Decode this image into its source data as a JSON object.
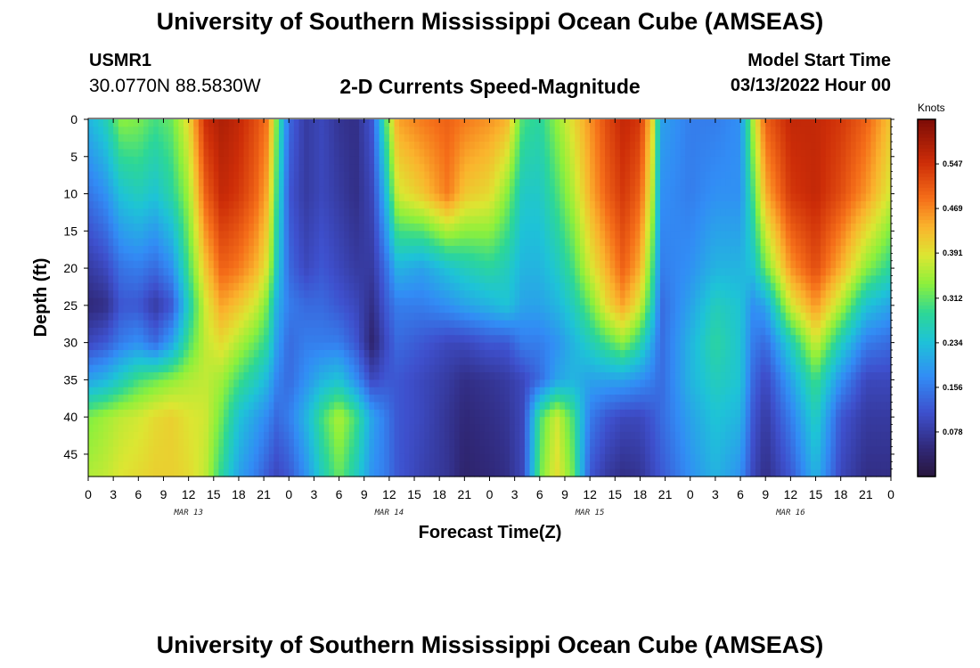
{
  "header": {
    "title": "University of Southern Mississippi Ocean Cube (AMSEAS)",
    "station_id": "USMR1",
    "station_coords": "30.0770N  88.5830W",
    "plot_title": "2-D Currents Speed-Magnitude",
    "start_label": "Model Start Time",
    "start_value": "03/13/2022 Hour 00"
  },
  "footer": {
    "title": "University of Southern Mississippi Ocean Cube (AMSEAS)"
  },
  "chart_data": {
    "type": "heatmap",
    "title": "2-D Currents Speed-Magnitude",
    "xlabel": "Forecast Time(Z)",
    "ylabel": "Depth (ft)",
    "x_hours": [
      0,
      96
    ],
    "xticks": [
      {
        "h": 0,
        "label": "0"
      },
      {
        "h": 3,
        "label": "3"
      },
      {
        "h": 6,
        "label": "6"
      },
      {
        "h": 9,
        "label": "9"
      },
      {
        "h": 12,
        "label": "12"
      },
      {
        "h": 15,
        "label": "15"
      },
      {
        "h": 18,
        "label": "18"
      },
      {
        "h": 21,
        "label": "21"
      },
      {
        "h": 24,
        "label": "0"
      },
      {
        "h": 27,
        "label": "3"
      },
      {
        "h": 30,
        "label": "6"
      },
      {
        "h": 33,
        "label": "9"
      },
      {
        "h": 36,
        "label": "12"
      },
      {
        "h": 39,
        "label": "15"
      },
      {
        "h": 42,
        "label": "18"
      },
      {
        "h": 45,
        "label": "21"
      },
      {
        "h": 48,
        "label": "0"
      },
      {
        "h": 51,
        "label": "3"
      },
      {
        "h": 54,
        "label": "6"
      },
      {
        "h": 57,
        "label": "9"
      },
      {
        "h": 60,
        "label": "12"
      },
      {
        "h": 63,
        "label": "15"
      },
      {
        "h": 66,
        "label": "18"
      },
      {
        "h": 69,
        "label": "21"
      },
      {
        "h": 72,
        "label": "0"
      },
      {
        "h": 75,
        "label": "3"
      },
      {
        "h": 78,
        "label": "6"
      },
      {
        "h": 81,
        "label": "9"
      },
      {
        "h": 84,
        "label": "12"
      },
      {
        "h": 87,
        "label": "15"
      },
      {
        "h": 90,
        "label": "18"
      },
      {
        "h": 93,
        "label": "21"
      },
      {
        "h": 96,
        "label": "0"
      }
    ],
    "date_labels": [
      {
        "h": 12,
        "label": "MAR 13"
      },
      {
        "h": 36,
        "label": "MAR 14"
      },
      {
        "h": 60,
        "label": "MAR 15"
      },
      {
        "h": 84,
        "label": "MAR 16"
      }
    ],
    "ylim": [
      0,
      48
    ],
    "yticks": [
      0,
      5,
      10,
      15,
      20,
      25,
      30,
      35,
      40,
      45
    ],
    "colorbar": {
      "unit_label": "Knots",
      "range": [
        0.0,
        0.625
      ],
      "ticks": [
        0.078,
        0.156,
        0.234,
        0.312,
        0.391,
        0.469,
        0.547
      ],
      "tick_labels": [
        "0.078",
        "0.156",
        "0.234",
        "0.312",
        "0.391",
        "0.469",
        "0.547"
      ]
    },
    "depth_levels_ft": [
      0,
      10,
      20,
      25,
      30,
      35,
      40,
      48
    ],
    "speed_columns": [
      {
        "h": 0,
        "values": [
          0.22,
          0.15,
          0.08,
          0.05,
          0.1,
          0.2,
          0.33,
          0.36
        ]
      },
      {
        "h": 2,
        "values": [
          0.26,
          0.18,
          0.1,
          0.06,
          0.12,
          0.22,
          0.35,
          0.37
        ]
      },
      {
        "h": 4,
        "values": [
          0.34,
          0.24,
          0.15,
          0.12,
          0.16,
          0.26,
          0.37,
          0.39
        ]
      },
      {
        "h": 6,
        "values": [
          0.33,
          0.26,
          0.16,
          0.12,
          0.18,
          0.3,
          0.38,
          0.4
        ]
      },
      {
        "h": 8,
        "values": [
          0.3,
          0.24,
          0.14,
          0.08,
          0.14,
          0.32,
          0.4,
          0.41
        ]
      },
      {
        "h": 10,
        "values": [
          0.32,
          0.28,
          0.18,
          0.12,
          0.2,
          0.34,
          0.41,
          0.41
        ]
      },
      {
        "h": 12,
        "values": [
          0.4,
          0.35,
          0.3,
          0.26,
          0.3,
          0.36,
          0.39,
          0.4
        ]
      },
      {
        "h": 14,
        "values": [
          0.55,
          0.5,
          0.42,
          0.38,
          0.37,
          0.37,
          0.38,
          0.37
        ]
      },
      {
        "h": 16,
        "values": [
          0.58,
          0.56,
          0.5,
          0.45,
          0.4,
          0.35,
          0.32,
          0.28
        ]
      },
      {
        "h": 18,
        "values": [
          0.56,
          0.54,
          0.48,
          0.42,
          0.36,
          0.3,
          0.24,
          0.2
        ]
      },
      {
        "h": 20,
        "values": [
          0.52,
          0.5,
          0.44,
          0.38,
          0.32,
          0.26,
          0.2,
          0.16
        ]
      },
      {
        "h": 21.5,
        "values": [
          0.48,
          0.44,
          0.38,
          0.32,
          0.28,
          0.22,
          0.17,
          0.12
        ]
      },
      {
        "h": 22.5,
        "values": [
          0.33,
          0.3,
          0.26,
          0.22,
          0.2,
          0.17,
          0.14,
          0.1
        ]
      },
      {
        "h": 24,
        "values": [
          0.14,
          0.12,
          0.14,
          0.16,
          0.14,
          0.14,
          0.16,
          0.12
        ]
      },
      {
        "h": 26,
        "values": [
          0.08,
          0.08,
          0.1,
          0.14,
          0.16,
          0.18,
          0.22,
          0.18
        ]
      },
      {
        "h": 28,
        "values": [
          0.1,
          0.1,
          0.12,
          0.14,
          0.16,
          0.22,
          0.3,
          0.26
        ]
      },
      {
        "h": 30,
        "values": [
          0.07,
          0.08,
          0.1,
          0.12,
          0.16,
          0.24,
          0.36,
          0.32
        ]
      },
      {
        "h": 32,
        "values": [
          0.06,
          0.06,
          0.08,
          0.1,
          0.12,
          0.18,
          0.3,
          0.26
        ]
      },
      {
        "h": 34,
        "values": [
          0.12,
          0.1,
          0.08,
          0.06,
          0.04,
          0.1,
          0.2,
          0.18
        ]
      },
      {
        "h": 35.5,
        "values": [
          0.3,
          0.22,
          0.14,
          0.12,
          0.1,
          0.12,
          0.16,
          0.16
        ]
      },
      {
        "h": 37,
        "values": [
          0.45,
          0.38,
          0.22,
          0.16,
          0.14,
          0.12,
          0.12,
          0.12
        ]
      },
      {
        "h": 40,
        "values": [
          0.48,
          0.42,
          0.2,
          0.16,
          0.12,
          0.1,
          0.1,
          0.09
        ]
      },
      {
        "h": 43,
        "values": [
          0.5,
          0.48,
          0.24,
          0.18,
          0.1,
          0.08,
          0.07,
          0.07
        ]
      },
      {
        "h": 45,
        "values": [
          0.48,
          0.42,
          0.26,
          0.2,
          0.1,
          0.06,
          0.05,
          0.04
        ]
      },
      {
        "h": 48,
        "values": [
          0.46,
          0.4,
          0.28,
          0.22,
          0.12,
          0.07,
          0.06,
          0.05
        ]
      },
      {
        "h": 50,
        "values": [
          0.44,
          0.34,
          0.26,
          0.24,
          0.12,
          0.08,
          0.07,
          0.06
        ]
      },
      {
        "h": 52,
        "values": [
          0.3,
          0.25,
          0.22,
          0.2,
          0.16,
          0.1,
          0.1,
          0.1
        ]
      },
      {
        "h": 54,
        "values": [
          0.28,
          0.25,
          0.22,
          0.2,
          0.16,
          0.14,
          0.3,
          0.32
        ]
      },
      {
        "h": 56,
        "values": [
          0.34,
          0.3,
          0.25,
          0.22,
          0.18,
          0.2,
          0.38,
          0.4
        ]
      },
      {
        "h": 58,
        "values": [
          0.4,
          0.36,
          0.3,
          0.26,
          0.22,
          0.22,
          0.3,
          0.32
        ]
      },
      {
        "h": 60,
        "values": [
          0.46,
          0.44,
          0.38,
          0.32,
          0.26,
          0.2,
          0.16,
          0.12
        ]
      },
      {
        "h": 62,
        "values": [
          0.52,
          0.5,
          0.44,
          0.4,
          0.3,
          0.2,
          0.12,
          0.08
        ]
      },
      {
        "h": 64,
        "values": [
          0.56,
          0.54,
          0.5,
          0.45,
          0.34,
          0.2,
          0.1,
          0.06
        ]
      },
      {
        "h": 66,
        "values": [
          0.54,
          0.5,
          0.44,
          0.38,
          0.28,
          0.18,
          0.1,
          0.07
        ]
      },
      {
        "h": 67.5,
        "values": [
          0.4,
          0.36,
          0.3,
          0.26,
          0.2,
          0.16,
          0.12,
          0.1
        ]
      },
      {
        "h": 68.5,
        "values": [
          0.2,
          0.18,
          0.16,
          0.14,
          0.14,
          0.14,
          0.14,
          0.12
        ]
      },
      {
        "h": 72,
        "values": [
          0.16,
          0.16,
          0.18,
          0.2,
          0.22,
          0.22,
          0.2,
          0.18
        ]
      },
      {
        "h": 75,
        "values": [
          0.16,
          0.18,
          0.22,
          0.26,
          0.28,
          0.26,
          0.24,
          0.22
        ]
      },
      {
        "h": 78,
        "values": [
          0.18,
          0.18,
          0.22,
          0.24,
          0.24,
          0.24,
          0.22,
          0.18
        ]
      },
      {
        "h": 79.5,
        "values": [
          0.36,
          0.3,
          0.24,
          0.18,
          0.16,
          0.14,
          0.12,
          0.1
        ]
      },
      {
        "h": 81,
        "values": [
          0.5,
          0.44,
          0.32,
          0.2,
          0.14,
          0.1,
          0.08,
          0.06
        ]
      },
      {
        "h": 84,
        "values": [
          0.56,
          0.54,
          0.46,
          0.38,
          0.26,
          0.2,
          0.16,
          0.12
        ]
      },
      {
        "h": 87,
        "values": [
          0.56,
          0.56,
          0.52,
          0.46,
          0.38,
          0.3,
          0.26,
          0.22
        ]
      },
      {
        "h": 90,
        "values": [
          0.54,
          0.52,
          0.44,
          0.36,
          0.26,
          0.18,
          0.12,
          0.1
        ]
      },
      {
        "h": 93,
        "values": [
          0.5,
          0.46,
          0.34,
          0.24,
          0.16,
          0.1,
          0.08,
          0.06
        ]
      },
      {
        "h": 96,
        "values": [
          0.42,
          0.38,
          0.28,
          0.2,
          0.14,
          0.1,
          0.08,
          0.06
        ]
      }
    ]
  }
}
